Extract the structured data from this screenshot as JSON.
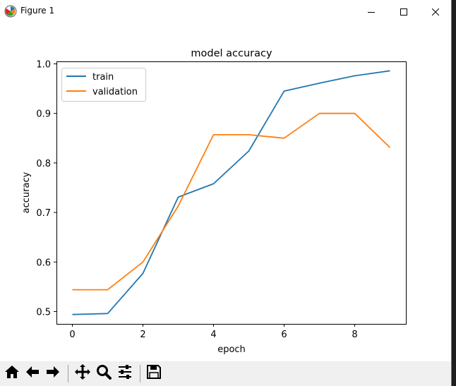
{
  "window": {
    "title": "Figure 1",
    "icons": {
      "app": "matplotlib-app-icon",
      "minimize": "minimize-icon",
      "maximize": "maximize-icon",
      "close": "close-icon"
    }
  },
  "toolbar": {
    "buttons": [
      {
        "name": "home-icon"
      },
      {
        "name": "back-arrow-icon"
      },
      {
        "name": "forward-arrow-icon"
      },
      {
        "name": "pan-icon"
      },
      {
        "name": "zoom-magnifier-icon"
      },
      {
        "name": "configure-subplots-icon"
      },
      {
        "name": "save-floppy-icon"
      }
    ]
  },
  "chart_data": {
    "type": "line",
    "title": "model accuracy",
    "xlabel": "epoch",
    "ylabel": "accuracy",
    "x": [
      0,
      1,
      2,
      3,
      4,
      5,
      6,
      7,
      8,
      9
    ],
    "xlim": [
      -0.45,
      9.45
    ],
    "ylim": [
      0.475,
      1.005
    ],
    "xticks": [
      0,
      2,
      4,
      6,
      8
    ],
    "xtick_labels": [
      "0",
      "2",
      "4",
      "6",
      "8"
    ],
    "yticks": [
      0.5,
      0.6,
      0.7,
      0.8,
      0.9,
      1.0
    ],
    "ytick_labels": [
      "0.5",
      "0.6",
      "0.7",
      "0.8",
      "0.9",
      "1.0"
    ],
    "grid": false,
    "legend_position": "upper-left",
    "series": [
      {
        "name": "train",
        "color": "#1f77b4",
        "values": [
          0.494,
          0.496,
          0.577,
          0.731,
          0.758,
          0.824,
          0.945,
          0.961,
          0.976,
          0.986
        ]
      },
      {
        "name": "validation",
        "color": "#ff7f0e",
        "values": [
          0.544,
          0.544,
          0.6,
          0.713,
          0.857,
          0.857,
          0.85,
          0.9,
          0.9,
          0.831
        ]
      }
    ]
  }
}
